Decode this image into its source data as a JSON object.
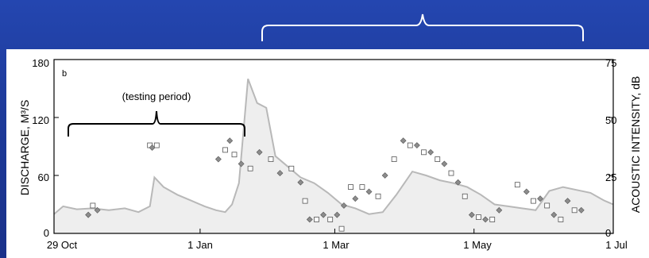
{
  "chart_data": {
    "type": "line",
    "panel_label": "b",
    "annotation": "(testing period)",
    "xlabels": [
      "29 Oct",
      "1 Jan",
      "1 Mar",
      "1 May",
      "1 Jul"
    ],
    "x_range": [
      "2000-10-29",
      "2001-07-01"
    ],
    "ylabel_left": "DISCHARGE, M³/S",
    "ylabel_right": "ACOUSTIC INTENSITY, dB",
    "left_axis": {
      "ylim": [
        0,
        180
      ],
      "ticks": [
        "0",
        "60",
        "120",
        "180"
      ]
    },
    "right_axis": {
      "ylim": [
        0,
        75
      ],
      "ticks": [
        "0",
        "25",
        "50",
        "75"
      ]
    },
    "discharge_series": {
      "name": "",
      "x": [
        "2000-10-29",
        "2000-11-02",
        "2000-11-08",
        "2000-11-15",
        "2000-11-22",
        "2000-11-29",
        "2000-12-05",
        "2000-12-10",
        "2000-12-12",
        "2000-12-16",
        "2000-12-22",
        "2000-12-28",
        "2001-01-03",
        "2001-01-08",
        "2001-01-12",
        "2001-01-15",
        "2001-01-18",
        "2001-01-22",
        "2001-01-26",
        "2001-01-30",
        "2001-02-03",
        "2001-02-08",
        "2001-02-14",
        "2001-02-20",
        "2001-02-26",
        "2001-03-04",
        "2001-03-10",
        "2001-03-16",
        "2001-03-22",
        "2001-03-28",
        "2001-04-04",
        "2001-04-10",
        "2001-04-16",
        "2001-04-22",
        "2001-04-28",
        "2001-05-04",
        "2001-05-10",
        "2001-05-16",
        "2001-05-22",
        "2001-05-28",
        "2001-06-03",
        "2001-06-09",
        "2001-06-15",
        "2001-06-21",
        "2001-06-27",
        "2001-07-01"
      ],
      "y": [
        20,
        28,
        25,
        26,
        24,
        26,
        22,
        28,
        58,
        48,
        40,
        34,
        28,
        24,
        22,
        30,
        52,
        160,
        135,
        130,
        80,
        70,
        58,
        52,
        42,
        30,
        26,
        20,
        22,
        40,
        64,
        60,
        55,
        52,
        48,
        40,
        30,
        28,
        26,
        24,
        44,
        48,
        45,
        42,
        34,
        30
      ]
    },
    "acoustic_series": {
      "name": "",
      "x": [
        "2000-11-13",
        "2000-11-15",
        "2000-11-17",
        "2000-12-10",
        "2000-12-11",
        "2000-12-13",
        "2001-01-09",
        "2001-01-12",
        "2001-01-14",
        "2001-01-16",
        "2001-01-19",
        "2001-01-23",
        "2001-01-27",
        "2001-02-01",
        "2001-02-05",
        "2001-02-10",
        "2001-02-14",
        "2001-02-16",
        "2001-02-18",
        "2001-02-21",
        "2001-02-24",
        "2001-02-27",
        "2001-03-02",
        "2001-03-04",
        "2001-03-05",
        "2001-03-08",
        "2001-03-10",
        "2001-03-13",
        "2001-03-16",
        "2001-03-20",
        "2001-03-23",
        "2001-03-27",
        "2001-03-31",
        "2001-04-03",
        "2001-04-06",
        "2001-04-09",
        "2001-04-12",
        "2001-04-15",
        "2001-04-18",
        "2001-04-21",
        "2001-04-24",
        "2001-04-27",
        "2001-04-30",
        "2001-05-03",
        "2001-05-06",
        "2001-05-09",
        "2001-05-12",
        "2001-05-20",
        "2001-05-24",
        "2001-05-27",
        "2001-05-30",
        "2001-06-02",
        "2001-06-05",
        "2001-06-08",
        "2001-06-11",
        "2001-06-14",
        "2001-06-17"
      ],
      "y": [
        8,
        12,
        10,
        38,
        37,
        38,
        32,
        36,
        40,
        34,
        30,
        28,
        35,
        32,
        26,
        28,
        22,
        14,
        6,
        6,
        8,
        6,
        8,
        2,
        12,
        20,
        15,
        20,
        18,
        16,
        25,
        32,
        40,
        38,
        38,
        35,
        35,
        32,
        30,
        26,
        22,
        16,
        8,
        7,
        6,
        6,
        10,
        21,
        18,
        14,
        15,
        12,
        8,
        6,
        14,
        10,
        10
      ]
    }
  }
}
